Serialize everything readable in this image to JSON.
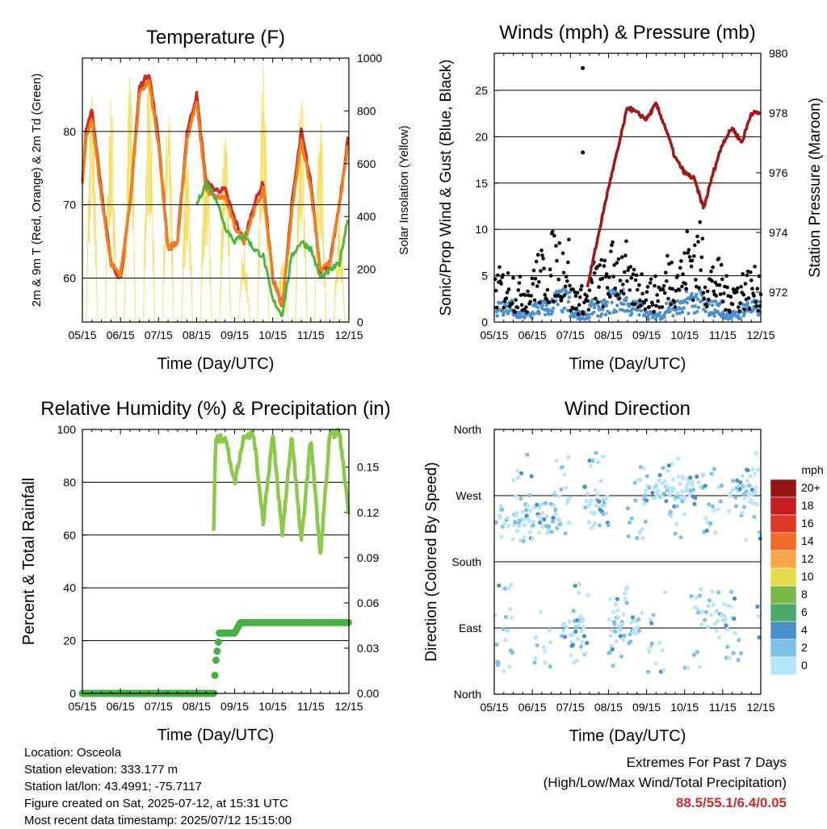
{
  "chart_data": [
    {
      "type": "line",
      "title": "Temperature (F)",
      "xlabel": "Time (Day/UTC)",
      "ylabel": "2m & 9m T (Red, Orange) & 2m Td (Green)",
      "ylabel_right": "Solar Insolation (Yellow)",
      "x_ticks": [
        "05/15",
        "06/15",
        "07/15",
        "08/15",
        "09/15",
        "10/15",
        "11/15",
        "12/15"
      ],
      "ylim": [
        54,
        90
      ],
      "y_ticks": [
        60,
        70,
        80
      ],
      "ylim_right": [
        0,
        1000
      ],
      "y_ticks_right": [
        0,
        200,
        400,
        600,
        800,
        1000
      ],
      "grid": "horizontal at left ticks",
      "series": [
        {
          "name": "2m T",
          "color": "#d42a1e",
          "x": [
            0,
            0.2,
            0.5,
            1,
            1.5,
            2,
            2.5,
            3,
            3.5,
            4,
            4.5,
            5,
            5.5,
            6,
            6.5,
            7,
            7.5,
            8,
            8.5,
            9,
            9.5,
            10,
            10.5,
            11,
            11.5,
            12,
            12.5,
            13,
            13.5,
            14
          ],
          "values": [
            73,
            80,
            83,
            72,
            62,
            60,
            70,
            86,
            88,
            79,
            64,
            65,
            80,
            85,
            73,
            72,
            72,
            68,
            65,
            70,
            73,
            60,
            56,
            70,
            80,
            73,
            61,
            62,
            70,
            80
          ]
        },
        {
          "name": "9m T",
          "color": "#f07f1e",
          "x": [
            0,
            0.2,
            0.5,
            1,
            1.5,
            2,
            2.5,
            3,
            3.5,
            4,
            4.5,
            5,
            5.5,
            6,
            6.5,
            7,
            7.5,
            8,
            8.5,
            9,
            9.5,
            10,
            10.5,
            11,
            11.5,
            12,
            12.5,
            13,
            13.5,
            14
          ],
          "values": [
            73,
            79,
            82,
            71,
            62,
            60.5,
            70,
            85,
            87,
            78,
            64,
            65,
            79,
            84,
            72,
            71,
            71,
            67,
            65,
            69,
            72,
            60,
            56,
            69,
            79,
            72,
            61,
            62,
            70,
            79
          ]
        },
        {
          "name": "2m Td",
          "color": "#4ab840",
          "x": [
            6,
            6.5,
            7,
            7.5,
            8,
            8.5,
            9,
            9.5,
            10,
            10.5,
            11,
            11.5,
            12,
            12.5,
            13,
            13.5,
            14
          ],
          "values": [
            70,
            73,
            71,
            67,
            65,
            66,
            64,
            63,
            57,
            55,
            63,
            65,
            64,
            60,
            61,
            62,
            69
          ]
        }
      ],
      "solar": {
        "name": "Solar Insolation",
        "color": "#f5e06a",
        "peaks": [
          900,
          850,
          950,
          980,
          820,
          650,
          700,
          750,
          300,
          980,
          250,
          920,
          800,
          400
        ]
      }
    },
    {
      "type": "scatter",
      "title": "Winds (mph) & Pressure (mb)",
      "xlabel": "Time (Day/UTC)",
      "ylabel": "Sonic/Prop Wind & Gust (Blue, Black)",
      "ylabel_right": "Station Pressure (Maroon)",
      "x_ticks": [
        "05/15",
        "06/15",
        "07/15",
        "08/15",
        "09/15",
        "10/15",
        "11/15",
        "12/15"
      ],
      "ylim": [
        0,
        29
      ],
      "y_ticks": [
        0,
        5,
        10,
        15,
        20,
        25
      ],
      "ylim_right": [
        971,
        980
      ],
      "y_ticks_right": [
        972,
        974,
        976,
        978,
        980
      ],
      "series": [
        {
          "name": "Wind",
          "color": "#4a90d0",
          "level": [
            2,
            1,
            2,
            3,
            1,
            2,
            3,
            2,
            1,
            2,
            3,
            2,
            1,
            2,
            3
          ]
        },
        {
          "name": "Gust",
          "color": "#000000",
          "level": [
            6,
            5,
            8,
            10,
            4,
            7,
            9,
            6,
            5,
            8,
            11,
            7,
            5,
            6,
            8
          ]
        },
        {
          "name": "Station Pressure",
          "color": "#a01818",
          "x": [
            4.9,
            5.5,
            6,
            6.5,
            7,
            7.5,
            8,
            8.5,
            9,
            9.5,
            10,
            10.5,
            11,
            11.5,
            12,
            12.5,
            13,
            13.5,
            14
          ],
          "values": [
            972.2,
            974,
            975.5,
            976.8,
            978.2,
            978,
            977.8,
            978.3,
            977.5,
            976.5,
            976,
            975.8,
            974.8,
            976,
            977,
            977.5,
            977,
            978,
            978
          ]
        }
      ]
    },
    {
      "type": "line",
      "title": "Relative Humidity (%) & Precipitation (in)",
      "xlabel": "Time (Day/UTC)",
      "ylabel": "Percent & Total Rainfall",
      "x_ticks": [
        "05/15",
        "06/15",
        "07/15",
        "08/15",
        "09/15",
        "10/15",
        "11/15",
        "12/15"
      ],
      "ylim": [
        0,
        100
      ],
      "y_ticks": [
        0,
        20,
        40,
        60,
        80,
        100
      ],
      "y_ticks_right": [
        "0.00",
        "0.03",
        "0.06",
        "0.09",
        "0.12",
        "0.15"
      ],
      "series": [
        {
          "name": "Relative Humidity",
          "color": "#8cc84a",
          "x": [
            6.9,
            7,
            7.5,
            8,
            8.5,
            9,
            9.5,
            10,
            10.5,
            11,
            11.5,
            12,
            12.5,
            13,
            13.5,
            14
          ],
          "values": [
            62,
            96,
            97,
            80,
            98,
            98,
            65,
            98,
            60,
            98,
            57,
            97,
            52,
            98,
            99,
            68
          ]
        },
        {
          "name": "Total Precipitation",
          "color": "#46b040",
          "x": [
            0,
            6.9,
            7,
            7.2,
            7.5,
            8,
            8.3,
            14
          ],
          "values": [
            0,
            0,
            0.02,
            0.04,
            0.04,
            0.04,
            0.047,
            0.047
          ]
        }
      ]
    },
    {
      "type": "scatter",
      "title": "Wind Direction",
      "xlabel": "Time (Day/UTC)",
      "ylabel": "Direction (Colored By Speed)",
      "x_ticks": [
        "05/15",
        "06/15",
        "07/15",
        "08/15",
        "09/15",
        "10/15",
        "11/15",
        "12/15"
      ],
      "y_ticks": [
        "North",
        "East",
        "South",
        "West",
        "North"
      ],
      "legend": {
        "title": "mph",
        "labels": [
          "0",
          "2",
          "4",
          "6",
          "8",
          "10",
          "12",
          "14",
          "16",
          "18",
          "20+"
        ],
        "colors": [
          "#b8e4f8",
          "#7ec0e8",
          "#4a90c8",
          "#4aa868",
          "#74b848",
          "#e4dc4a",
          "#f8a848",
          "#f06a2a",
          "#e03a24",
          "#c41e1e",
          "#961616"
        ]
      },
      "clusters": [
        {
          "center": 2.5,
          "dir": [
            225,
            250
          ],
          "speed": 2
        },
        {
          "center": 4.5,
          "dir": [
            80,
            100
          ],
          "speed": 1
        },
        {
          "center": 5,
          "dir": [
            240,
            260
          ],
          "speed": 3
        },
        {
          "center": 7,
          "dir": [
            80,
            110
          ],
          "speed": 1
        },
        {
          "center": 8.5,
          "dir": [
            270,
            290
          ],
          "speed": 2
        },
        {
          "center": 10.5,
          "dir": [
            275,
            290
          ],
          "speed": 2
        },
        {
          "center": 11.5,
          "dir": [
            90,
            120
          ],
          "speed": 1
        },
        {
          "center": 13,
          "dir": [
            260,
            290
          ],
          "speed": 3
        },
        {
          "center": 14.5,
          "dir": [
            90,
            110
          ],
          "speed": 1
        }
      ]
    }
  ],
  "station_info": {
    "location": "Location: Osceola",
    "elevation": "Station elevation: 333.177 m",
    "latlon": "Station lat/lon: 43.4991; -75.7117",
    "created": "Figure created on Sat, 2025-07-12, at 15:31 UTC",
    "recent": "Most recent data timestamp: 2025/07/12 15:15:00"
  },
  "extremes": {
    "title": "Extremes For Past 7 Days",
    "subtitle": "(High/Low/Max Wind/Total Precipitation)",
    "values": "88.5/55.1/6.4/0.05"
  }
}
